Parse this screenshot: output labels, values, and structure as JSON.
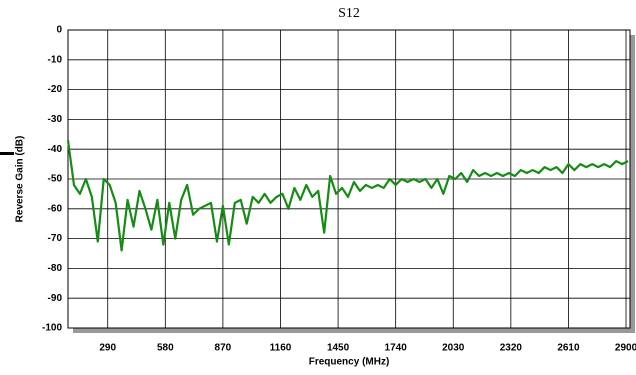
{
  "chart_data": {
    "type": "line",
    "title": "S12",
    "x_label": "Frequency (MHz)",
    "y_label": "Reverse Gain (dB)",
    "x": [
      90,
      120,
      150,
      180,
      210,
      240,
      270,
      300,
      330,
      360,
      390,
      420,
      450,
      480,
      510,
      540,
      570,
      600,
      630,
      660,
      690,
      720,
      750,
      780,
      810,
      840,
      870,
      900,
      930,
      960,
      990,
      1020,
      1050,
      1080,
      1110,
      1140,
      1170,
      1200,
      1230,
      1260,
      1290,
      1320,
      1350,
      1380,
      1410,
      1440,
      1470,
      1500,
      1530,
      1560,
      1590,
      1620,
      1650,
      1680,
      1710,
      1740,
      1770,
      1800,
      1830,
      1860,
      1890,
      1920,
      1950,
      1980,
      2010,
      2040,
      2070,
      2100,
      2130,
      2160,
      2190,
      2220,
      2250,
      2280,
      2310,
      2340,
      2370,
      2400,
      2430,
      2460,
      2490,
      2520,
      2550,
      2580,
      2610,
      2640,
      2670,
      2700,
      2730,
      2760,
      2790,
      2820,
      2850,
      2880,
      2910
    ],
    "series": [
      {
        "name": "S12",
        "color": "#168c16",
        "values": [
          -37,
          -52,
          -55,
          -50,
          -56,
          -71,
          -50,
          -52,
          -58,
          -74,
          -57,
          -66,
          -54,
          -60,
          -67,
          -57,
          -72,
          -58,
          -70,
          -57,
          -52,
          -62,
          -60,
          -59,
          -58,
          -71,
          -59,
          -72,
          -58,
          -57,
          -65,
          -56,
          -58,
          -55,
          -58,
          -56,
          -55,
          -60,
          -53,
          -57,
          -52,
          -56,
          -54,
          -68,
          -49,
          -55,
          -53,
          -56,
          -51,
          -54,
          -52,
          -53,
          -52,
          -53,
          -50,
          -52,
          -50,
          -51,
          -50,
          -51,
          -50,
          -53,
          -50,
          -55,
          -49,
          -50,
          -48,
          -51,
          -47,
          -49,
          -48,
          -49,
          -48,
          -49,
          -48,
          -49,
          -47,
          -48,
          -47,
          -48,
          -46,
          -47,
          -46,
          -48,
          -45,
          -47,
          -45,
          -46,
          -45,
          -46,
          -45,
          -46,
          -44,
          -45,
          -44
        ]
      }
    ],
    "xlim": [
      90,
      2920
    ],
    "ylim": [
      -100,
      0
    ],
    "xticks": [
      290,
      580,
      870,
      1160,
      1450,
      1740,
      2030,
      2320,
      2610,
      2900
    ],
    "yticks": [
      0,
      -10,
      -20,
      -30,
      -40,
      -50,
      -60,
      -70,
      -80,
      -90,
      -100
    ],
    "grid": true
  }
}
